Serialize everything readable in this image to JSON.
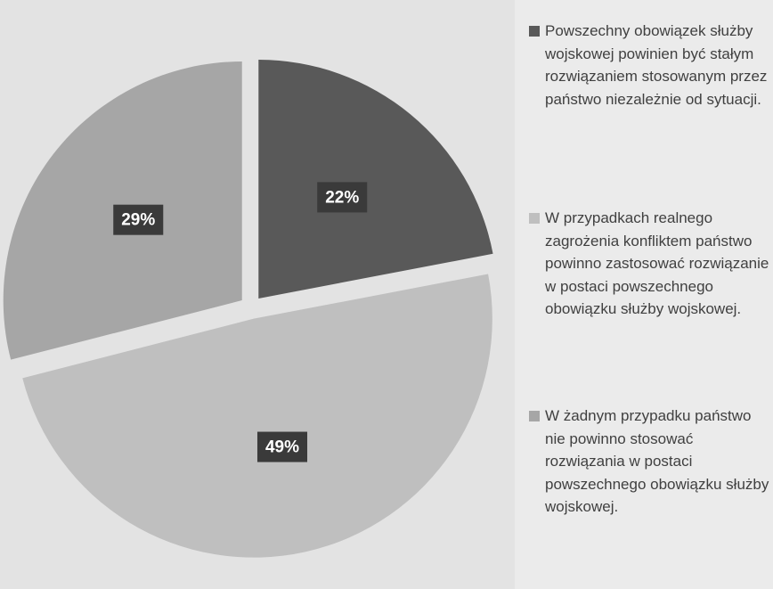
{
  "chart_data": {
    "type": "pie",
    "categories": [
      "Powszechny obowiązek służby wojskowej powinien być stałym rozwiązaniem stosowanym przez państwo niezależnie od sytuacji.",
      "W przypadkach realnego zagrożenia konfliktem państwo powinno zastosować rozwiązanie w postaci powszechnego obowiązku służby wojskowej.",
      "W żadnym przypadku państwo nie powinno stosować rozwiązania w postaci powszechnego obowiązku służby wojskowej."
    ],
    "values": [
      22,
      49,
      29
    ],
    "value_labels": [
      "22%",
      "49%",
      "29%"
    ],
    "colors": [
      "#595959",
      "#bfbfbf",
      "#a6a6a6"
    ],
    "legend": "right"
  }
}
